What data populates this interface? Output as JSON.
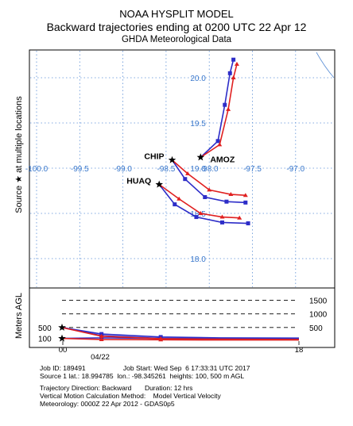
{
  "header": {
    "line1": "NOAA HYSPLIT MODEL",
    "line2": "Backward trajectories ending at 0200 UTC 22 Apr 12",
    "line3": "GHDA Meteorological Data"
  },
  "side_labels": {
    "source": "Source ★ at multiple locations",
    "height": "Meters AGL"
  },
  "chart_data": [
    {
      "type": "line",
      "name": "map",
      "lon_ticks": [
        "-100.0",
        "-99.5",
        "-99.0",
        "-98.5",
        "-98.0",
        "-97.5",
        "-97.0"
      ],
      "lat_ticks": [
        "20.0",
        "19.5",
        "19.0",
        "18.5",
        "18.0"
      ],
      "sources": [
        {
          "label": "CHIP",
          "lon": -98.43,
          "lat": 19.09
        },
        {
          "label": "AMOZ",
          "lon": -98.1,
          "lat": 19.12
        },
        {
          "label": "HUAQ",
          "lon": -98.58,
          "lat": 18.82
        }
      ],
      "series": [
        {
          "source": "AMOZ",
          "color": "#2d2dc8",
          "points": [
            [
              -98.1,
              19.12
            ],
            [
              -97.9,
              19.3
            ],
            [
              -97.82,
              19.7
            ],
            [
              -97.76,
              20.05
            ],
            [
              -97.72,
              20.2
            ]
          ]
        },
        {
          "source": "AMOZ",
          "color": "#e02020",
          "points": [
            [
              -98.1,
              19.12
            ],
            [
              -97.88,
              19.26
            ],
            [
              -97.78,
              19.65
            ],
            [
              -97.72,
              20.0
            ],
            [
              -97.68,
              20.15
            ]
          ]
        },
        {
          "source": "CHIP",
          "color": "#2d2dc8",
          "points": [
            [
              -98.43,
              19.09
            ],
            [
              -98.28,
              18.88
            ],
            [
              -98.05,
              18.68
            ],
            [
              -97.8,
              18.63
            ],
            [
              -97.58,
              18.62
            ]
          ]
        },
        {
          "source": "CHIP",
          "color": "#e02020",
          "points": [
            [
              -98.43,
              19.09
            ],
            [
              -98.25,
              18.94
            ],
            [
              -98.0,
              18.76
            ],
            [
              -97.75,
              18.71
            ],
            [
              -97.58,
              18.7
            ]
          ]
        },
        {
          "source": "HUAQ",
          "color": "#2d2dc8",
          "points": [
            [
              -98.58,
              18.82
            ],
            [
              -98.4,
              18.6
            ],
            [
              -98.15,
              18.46
            ],
            [
              -97.85,
              18.4
            ],
            [
              -97.55,
              18.39
            ]
          ]
        },
        {
          "source": "HUAQ",
          "color": "#e02020",
          "points": [
            [
              -98.58,
              18.82
            ],
            [
              -98.35,
              18.66
            ],
            [
              -98.1,
              18.5
            ],
            [
              -97.85,
              18.46
            ],
            [
              -97.65,
              18.45
            ]
          ]
        }
      ]
    },
    {
      "type": "line",
      "name": "height-profile",
      "ylabel": "Meters AGL",
      "y_ticks_left": [
        "500",
        "100"
      ],
      "y_ticks_right": [
        "1500",
        "1000",
        "500"
      ],
      "x_ticks": [
        "00",
        "18"
      ],
      "x_date": "04/22",
      "sources": [
        {
          "height": 500
        },
        {
          "height": 100
        }
      ],
      "series": [
        {
          "color": "#2d2dc8",
          "points": [
            [
              0,
              500
            ],
            [
              2,
              200
            ],
            [
              5,
              100
            ],
            [
              8,
              80
            ],
            [
              12,
              70
            ]
          ]
        },
        {
          "color": "#2d2dc8",
          "points": [
            [
              0,
              500
            ],
            [
              2,
              260
            ],
            [
              5,
              150
            ],
            [
              8,
              120
            ],
            [
              12,
              110
            ]
          ]
        },
        {
          "color": "#2d2dc8",
          "points": [
            [
              0,
              100
            ],
            [
              2,
              120
            ],
            [
              5,
              100
            ],
            [
              8,
              90
            ],
            [
              12,
              80
            ]
          ]
        },
        {
          "color": "#e02020",
          "points": [
            [
              0,
              500
            ],
            [
              2,
              180
            ],
            [
              5,
              90
            ],
            [
              8,
              70
            ],
            [
              12,
              60
            ]
          ]
        },
        {
          "color": "#e02020",
          "points": [
            [
              0,
              100
            ],
            [
              2,
              60
            ],
            [
              5,
              50
            ],
            [
              8,
              40
            ],
            [
              12,
              40
            ]
          ]
        }
      ]
    }
  ],
  "footer": {
    "line1": "Job ID: 189491                    Job Start: Wed Sep  6 17:33:31 UTC 2017",
    "line2": "Source 1 lat.: 18.994785  lon.: -98.345261  heights: 100, 500 m AGL",
    "line3": "Trajectory Direction: Backward       Duration: 12 hrs",
    "line4": "Vertical Motion Calculation Method:    Model Vertical Velocity",
    "line5": "Meteorology: 0000Z 22 Apr 2012 - GDAS0p5"
  }
}
